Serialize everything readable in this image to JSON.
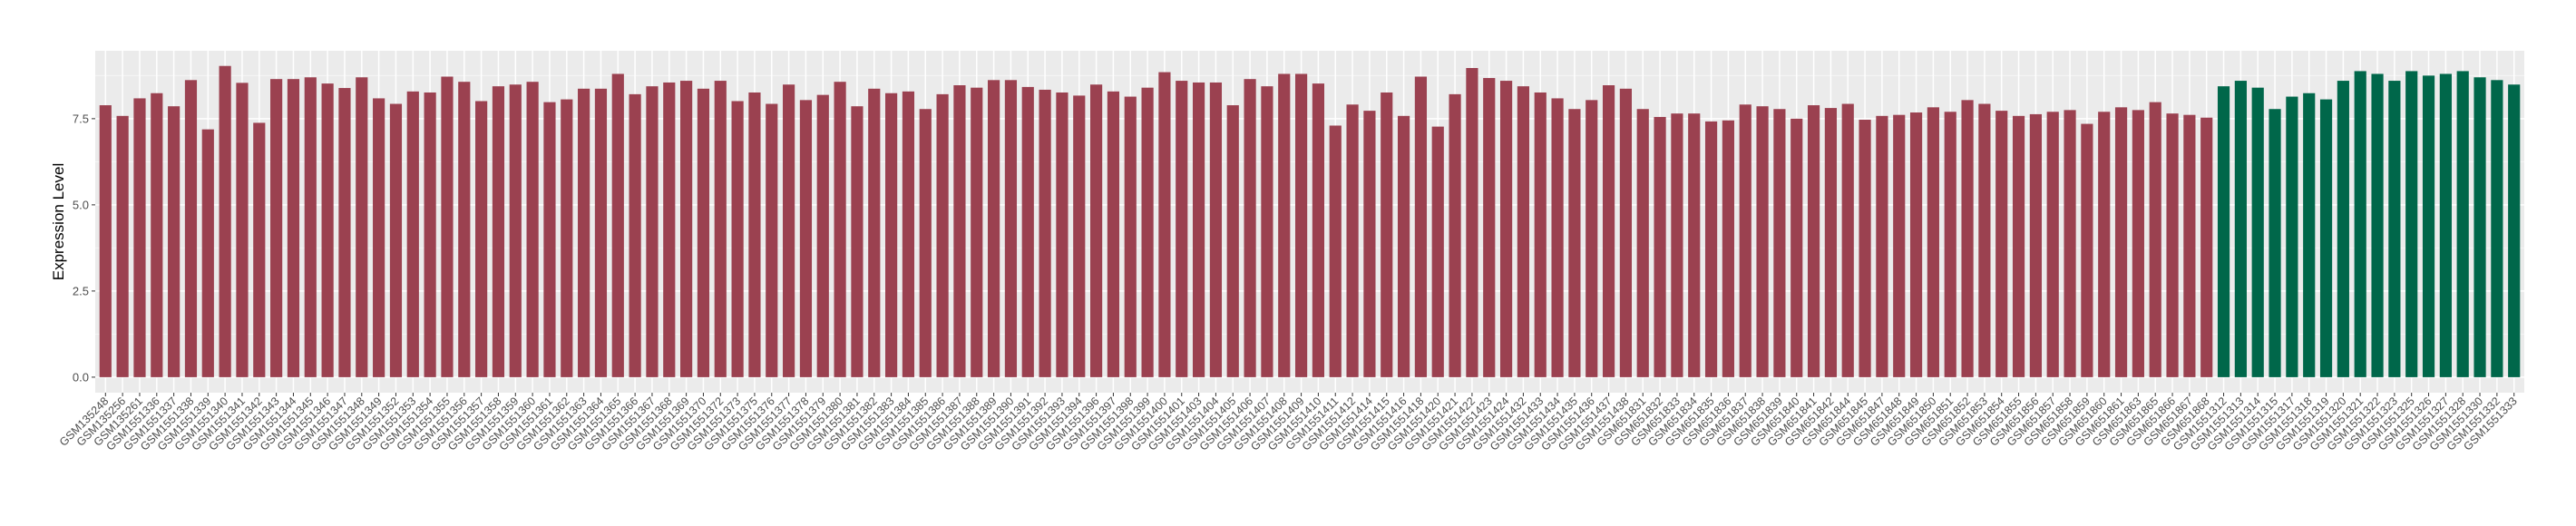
{
  "chart_data": {
    "type": "bar",
    "title": "",
    "xlabel": "",
    "ylabel": "Expression Level",
    "ylim": [
      -0.45,
      9.47
    ],
    "yticks": [
      "0.0",
      "2.5",
      "5.0",
      "7.5"
    ],
    "ytick_values": [
      0,
      2.5,
      5,
      7.5
    ],
    "grid": true,
    "legend": "none",
    "colors": {
      "group1": "#9B4150",
      "group2": "#00674A",
      "panel": "#EBEBEB",
      "grid": "#FFFFFF"
    },
    "categories": [
      "GSM135248",
      "GSM135256",
      "GSM135261",
      "GSM1551336",
      "GSM1551337",
      "GSM1551338",
      "GSM1551339",
      "GSM1551340",
      "GSM1551341",
      "GSM1551342",
      "GSM1551343",
      "GSM1551344",
      "GSM1551345",
      "GSM1551346",
      "GSM1551347",
      "GSM1551348",
      "GSM1551349",
      "GSM1551352",
      "GSM1551353",
      "GSM1551354",
      "GSM1551355",
      "GSM1551356",
      "GSM1551357",
      "GSM1551358",
      "GSM1551359",
      "GSM1551360",
      "GSM1551361",
      "GSM1551362",
      "GSM1551363",
      "GSM1551364",
      "GSM1551365",
      "GSM1551366",
      "GSM1551367",
      "GSM1551368",
      "GSM1551369",
      "GSM1551370",
      "GSM1551372",
      "GSM1551373",
      "GSM1551375",
      "GSM1551376",
      "GSM1551377",
      "GSM1551378",
      "GSM1551379",
      "GSM1551380",
      "GSM1551381",
      "GSM1551382",
      "GSM1551383",
      "GSM1551384",
      "GSM1551385",
      "GSM1551386",
      "GSM1551387",
      "GSM1551388",
      "GSM1551389",
      "GSM1551390",
      "GSM1551391",
      "GSM1551392",
      "GSM1551393",
      "GSM1551394",
      "GSM1551396",
      "GSM1551397",
      "GSM1551398",
      "GSM1551399",
      "GSM1551400",
      "GSM1551401",
      "GSM1551403",
      "GSM1551404",
      "GSM1551405",
      "GSM1551406",
      "GSM1551407",
      "GSM1551408",
      "GSM1551409",
      "GSM1551410",
      "GSM1551411",
      "GSM1551412",
      "GSM1551414",
      "GSM1551415",
      "GSM1551416",
      "GSM1551418",
      "GSM1551420",
      "GSM1551421",
      "GSM1551422",
      "GSM1551423",
      "GSM1551424",
      "GSM1551432",
      "GSM1551433",
      "GSM1551434",
      "GSM1551435",
      "GSM1551436",
      "GSM1551437",
      "GSM1551438",
      "GSM651831",
      "GSM651832",
      "GSM651833",
      "GSM651834",
      "GSM651835",
      "GSM651836",
      "GSM651837",
      "GSM651838",
      "GSM651839",
      "GSM651840",
      "GSM651841",
      "GSM651842",
      "GSM651844",
      "GSM651845",
      "GSM651847",
      "GSM651848",
      "GSM651849",
      "GSM651850",
      "GSM651851",
      "GSM651852",
      "GSM651853",
      "GSM651854",
      "GSM651855",
      "GSM651856",
      "GSM651857",
      "GSM651858",
      "GSM651859",
      "GSM651860",
      "GSM651861",
      "GSM651863",
      "GSM651865",
      "GSM651866",
      "GSM651867",
      "GSM651868",
      "GSM1551312",
      "GSM1551313",
      "GSM1551314",
      "GSM1551315",
      "GSM1551317",
      "GSM1551318",
      "GSM1551319",
      "GSM1551320",
      "GSM1551321",
      "GSM1551322",
      "GSM1551323",
      "GSM1551325",
      "GSM1551326",
      "GSM1551327",
      "GSM1551328",
      "GSM1551330",
      "GSM1551332",
      "GSM1551333"
    ],
    "values": [
      7.89,
      7.58,
      8.09,
      8.24,
      7.86,
      8.62,
      7.19,
      9.03,
      8.54,
      7.38,
      8.65,
      8.65,
      8.7,
      8.52,
      8.39,
      8.7,
      8.09,
      7.93,
      8.29,
      8.26,
      8.72,
      8.57,
      8.01,
      8.44,
      8.49,
      8.57,
      7.98,
      8.06,
      8.37,
      8.37,
      8.8,
      8.21,
      8.44,
      8.55,
      8.6,
      8.37,
      8.6,
      8.01,
      8.26,
      7.93,
      8.49,
      8.04,
      8.19,
      8.57,
      7.86,
      8.37,
      8.24,
      8.29,
      7.78,
      8.21,
      8.47,
      8.4,
      8.62,
      8.62,
      8.42,
      8.34,
      8.26,
      8.17,
      8.49,
      8.29,
      8.14,
      8.4,
      8.85,
      8.6,
      8.55,
      8.55,
      7.89,
      8.65,
      8.44,
      8.8,
      8.8,
      8.52,
      7.3,
      7.91,
      7.73,
      8.26,
      7.58,
      8.72,
      7.27,
      8.21,
      8.97,
      8.68,
      8.6,
      8.44,
      8.26,
      8.09,
      7.78,
      8.04,
      8.47,
      8.37,
      7.78,
      7.55,
      7.65,
      7.65,
      7.42,
      7.45,
      7.91,
      7.86,
      7.78,
      7.5,
      7.89,
      7.81,
      7.93,
      7.47,
      7.58,
      7.61,
      7.68,
      7.83,
      7.7,
      8.04,
      7.93,
      7.73,
      7.58,
      7.63,
      7.7,
      7.75,
      7.35,
      7.7,
      7.83,
      7.75,
      7.98,
      7.65,
      7.61,
      7.53,
      8.44,
      8.6,
      8.4,
      7.78,
      8.14,
      8.24,
      8.06,
      8.6,
      8.88,
      8.8,
      8.6,
      8.88,
      8.75,
      8.8,
      8.88,
      8.7,
      8.62,
      8.49
    ],
    "groups": [
      1,
      1,
      1,
      1,
      1,
      1,
      1,
      1,
      1,
      1,
      1,
      1,
      1,
      1,
      1,
      1,
      1,
      1,
      1,
      1,
      1,
      1,
      1,
      1,
      1,
      1,
      1,
      1,
      1,
      1,
      1,
      1,
      1,
      1,
      1,
      1,
      1,
      1,
      1,
      1,
      1,
      1,
      1,
      1,
      1,
      1,
      1,
      1,
      1,
      1,
      1,
      1,
      1,
      1,
      1,
      1,
      1,
      1,
      1,
      1,
      1,
      1,
      1,
      1,
      1,
      1,
      1,
      1,
      1,
      1,
      1,
      1,
      1,
      1,
      1,
      1,
      1,
      1,
      1,
      1,
      1,
      1,
      1,
      1,
      1,
      1,
      1,
      1,
      1,
      1,
      1,
      1,
      1,
      1,
      1,
      1,
      1,
      1,
      1,
      1,
      1,
      1,
      1,
      1,
      1,
      1,
      1,
      1,
      1,
      1,
      1,
      1,
      1,
      1,
      1,
      1,
      1,
      1,
      1,
      1,
      1,
      1,
      1,
      1,
      2,
      2,
      2,
      2,
      2,
      2,
      2,
      2,
      2,
      2,
      2,
      2,
      2,
      2,
      2,
      2,
      2,
      2
    ]
  }
}
